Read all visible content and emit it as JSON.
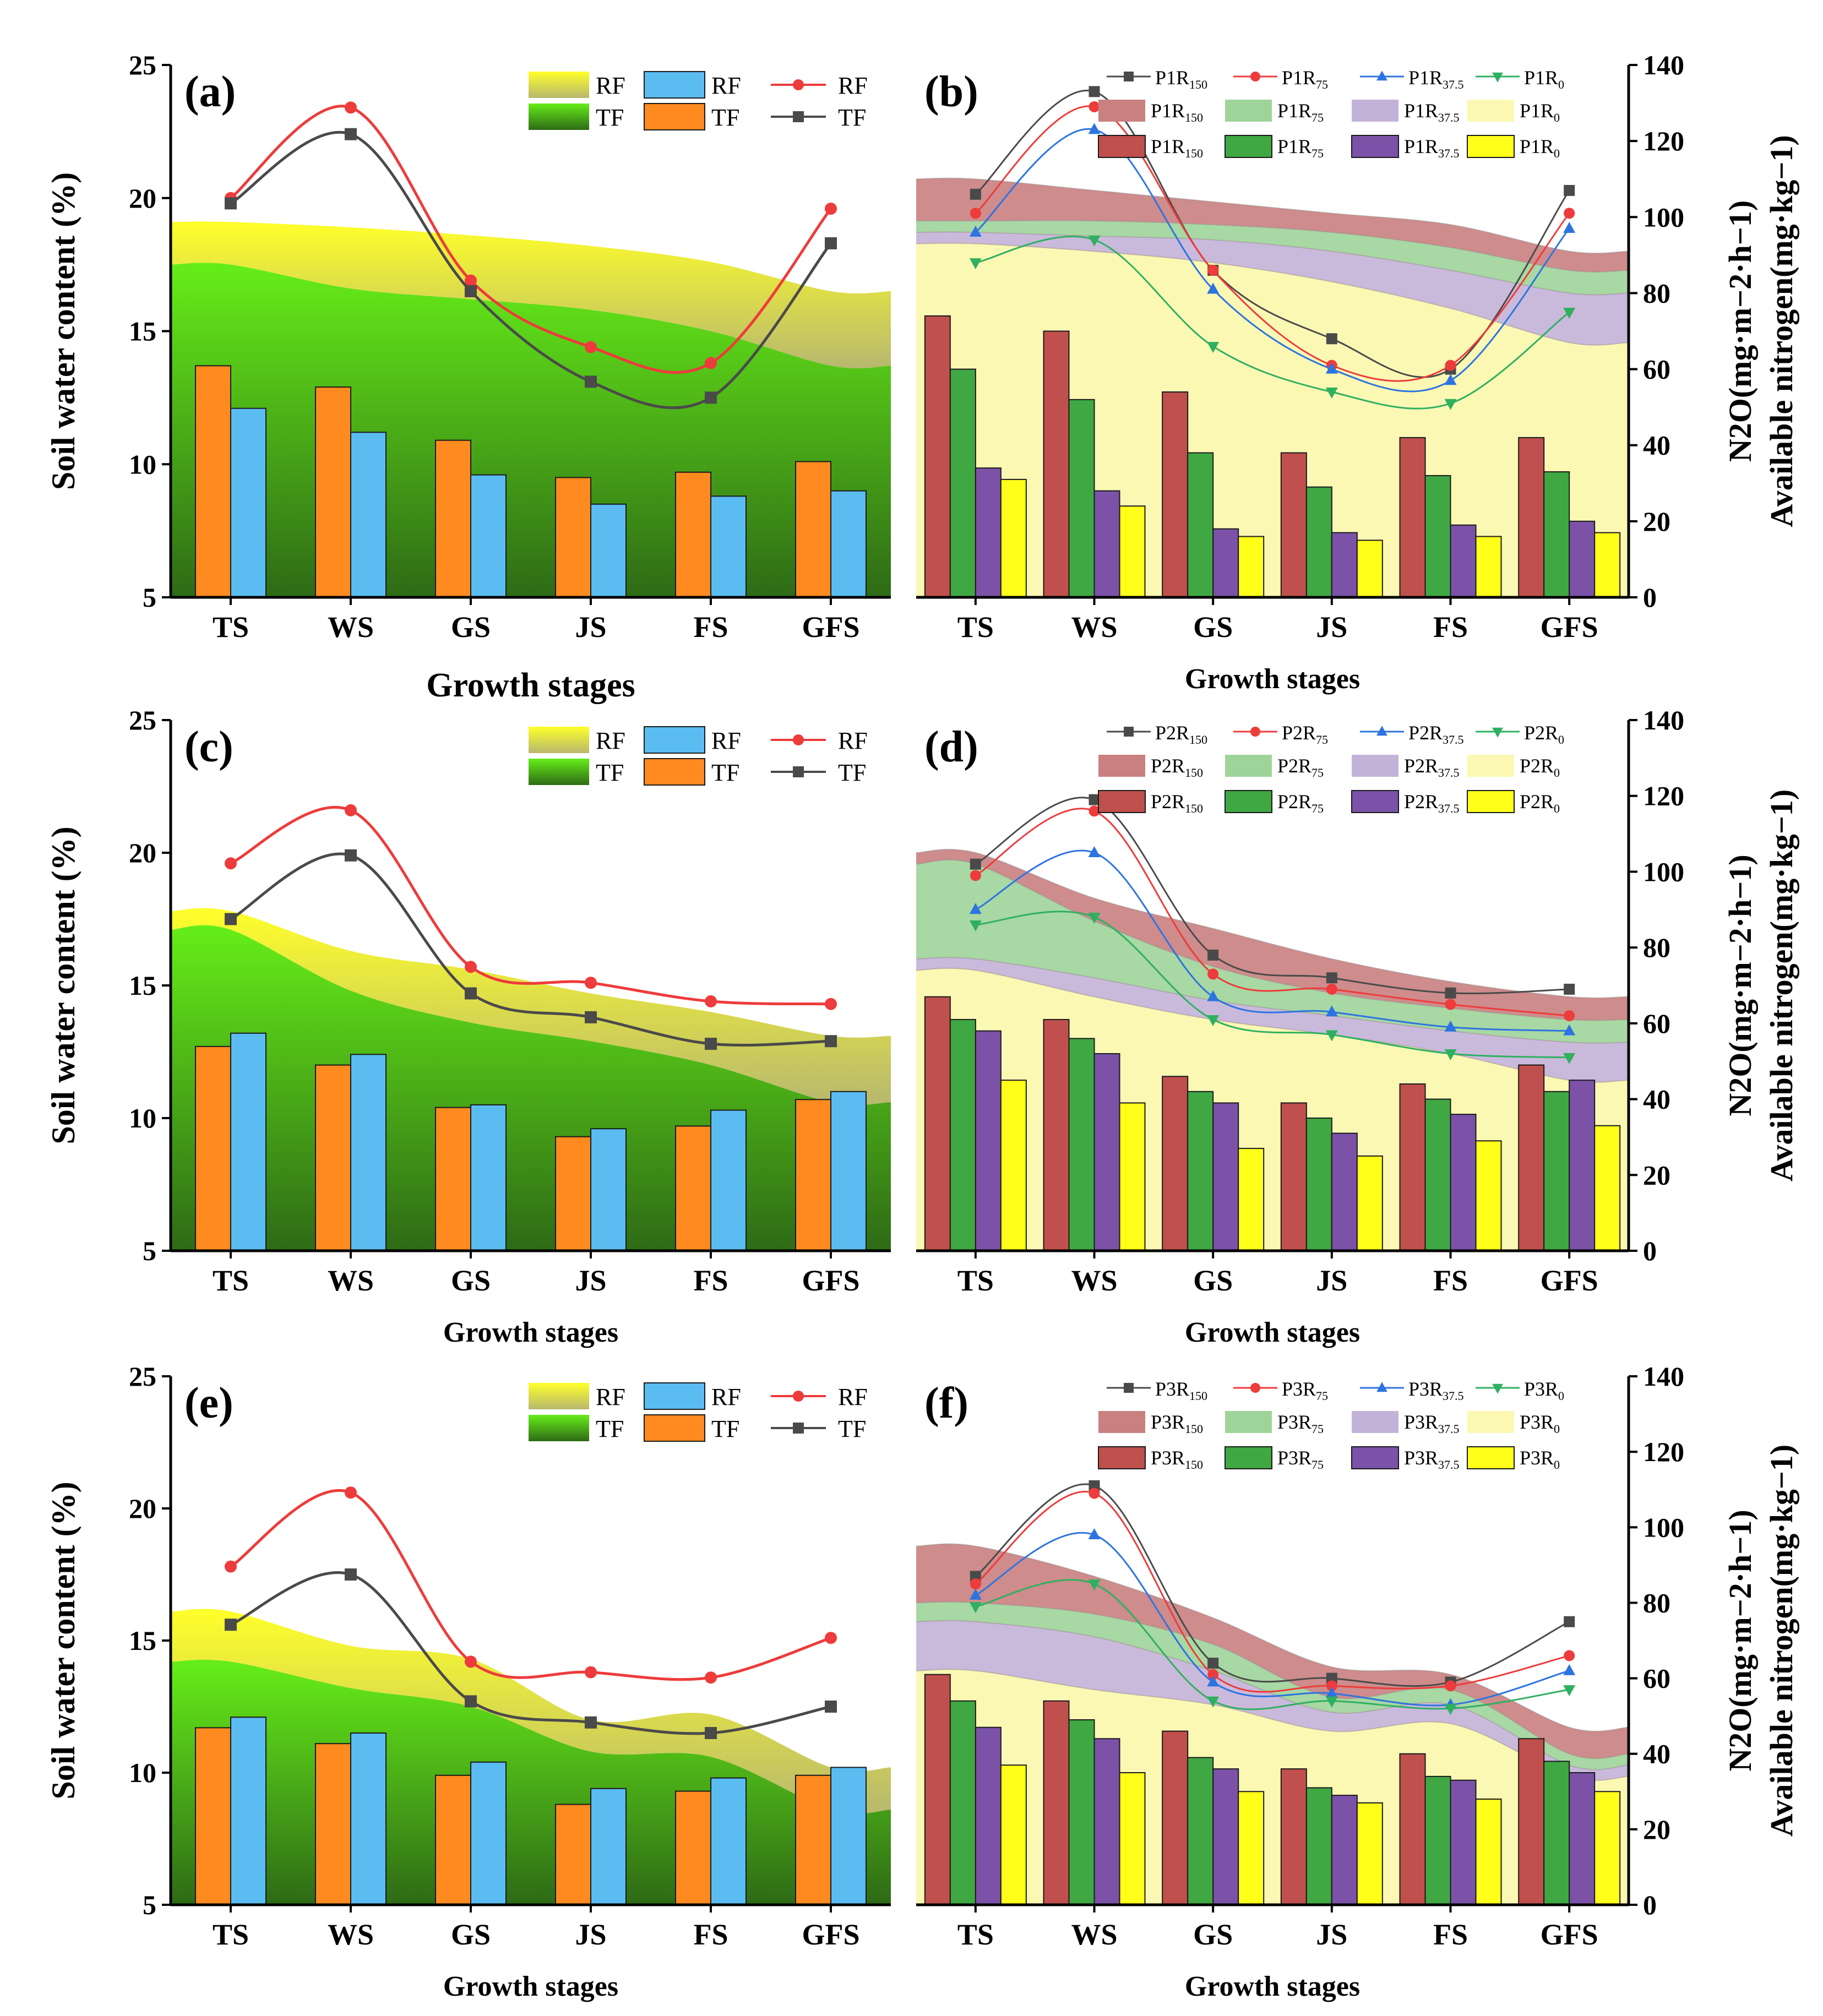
{
  "chart_data": [
    {
      "id": "a",
      "type": "bar",
      "panel_label": "(a)",
      "ylabel": "Soil water content (%)",
      "xlabel": "Growth stages",
      "ylim": [
        5,
        25
      ],
      "yticks": [
        5,
        10,
        15,
        20,
        25
      ],
      "categories": [
        "TS",
        "WS",
        "GS",
        "JS",
        "FS",
        "GFS"
      ],
      "areas": [
        {
          "name": "RF",
          "color": "#f2f24a",
          "values": [
            19.1,
            18.9,
            18.6,
            18.2,
            17.6,
            16.5
          ]
        },
        {
          "name": "TF",
          "color": "#3cb81e",
          "values": [
            17.5,
            16.6,
            16.2,
            15.8,
            15.0,
            13.7
          ]
        }
      ],
      "bars": [
        {
          "name": "TF",
          "color": "#ff8a1f",
          "values": [
            13.7,
            12.9,
            10.9,
            9.5,
            9.7,
            10.1
          ]
        },
        {
          "name": "RF",
          "color": "#5bbcf2",
          "values": [
            12.1,
            11.2,
            9.6,
            8.5,
            8.8,
            9.0
          ]
        }
      ],
      "lines": [
        {
          "name": "RF",
          "color": "#ee3b3b",
          "marker": "circle",
          "values": [
            20.0,
            23.4,
            16.9,
            14.4,
            13.8,
            19.6
          ]
        },
        {
          "name": "TF",
          "color": "#4a4a4a",
          "marker": "square",
          "values": [
            19.8,
            22.4,
            16.5,
            13.1,
            12.5,
            18.3
          ]
        }
      ],
      "legend": [
        {
          "label": "RF",
          "kind": "area-rf"
        },
        {
          "label": "TF",
          "kind": "area-tf"
        },
        {
          "label": "RF",
          "kind": "bar-rf"
        },
        {
          "label": "TF",
          "kind": "bar-tf"
        },
        {
          "label": "RF",
          "kind": "line-rf"
        },
        {
          "label": "TF",
          "kind": "line-tf"
        }
      ]
    },
    {
      "id": "b",
      "type": "bar",
      "panel_label": "(b)",
      "ylabel": "N2O(mg·m−2·h−1)  Available nitrogen(mg·kg−1)",
      "xlabel": "Growth stages",
      "ylim": [
        0,
        140
      ],
      "yticks": [
        0,
        20,
        40,
        60,
        80,
        100,
        120,
        140
      ],
      "categories": [
        "TS",
        "WS",
        "GS",
        "JS",
        "FS",
        "GFS"
      ],
      "areas": [
        {
          "name": "P1R150",
          "color": "#c98080",
          "values": [
            110,
            107,
            104,
            101,
            98,
            91
          ]
        },
        {
          "name": "P1R75",
          "color": "#9ed49a",
          "values": [
            99,
            99,
            98,
            96,
            92,
            86
          ]
        },
        {
          "name": "P1R37.5",
          "color": "#c3b2d8",
          "values": [
            96,
            95,
            94,
            91,
            86,
            80
          ]
        },
        {
          "name": "P1R0",
          "color": "#fbf8b4",
          "values": [
            93,
            91,
            88,
            83,
            76,
            67
          ]
        }
      ],
      "bars": [
        {
          "name": "P1R150",
          "color": "#c0504d",
          "values": [
            74,
            70,
            54,
            38,
            42,
            42
          ]
        },
        {
          "name": "P1R75",
          "color": "#3fa843",
          "values": [
            60,
            52,
            38,
            29,
            32,
            33
          ]
        },
        {
          "name": "P1R37.5",
          "color": "#7b52a8",
          "values": [
            34,
            28,
            18,
            17,
            19,
            20
          ]
        },
        {
          "name": "P1R0",
          "color": "#ffff1a",
          "values": [
            31,
            24,
            16,
            15,
            16,
            17
          ]
        }
      ],
      "lines": [
        {
          "name": "P1R150",
          "color": "#4a4a4a",
          "marker": "square",
          "values": [
            106,
            133,
            86,
            68,
            60,
            107
          ]
        },
        {
          "name": "P1R75",
          "color": "#ee3b3b",
          "marker": "circle",
          "values": [
            101,
            129,
            86,
            61,
            61,
            101
          ]
        },
        {
          "name": "P1R37.5",
          "color": "#2d74e0",
          "marker": "triangle",
          "values": [
            96,
            123,
            81,
            60,
            57,
            97
          ]
        },
        {
          "name": "P1R0",
          "color": "#2fb060",
          "marker": "triangle-down",
          "values": [
            88,
            94,
            66,
            54,
            51,
            75
          ]
        }
      ],
      "legend": [
        {
          "label": "P1R150",
          "kind": "line",
          "series": 0
        },
        {
          "label": "P1R75",
          "kind": "line",
          "series": 1
        },
        {
          "label": "P1R37.5",
          "kind": "line",
          "series": 2
        },
        {
          "label": "P1R0",
          "kind": "line",
          "series": 3
        },
        {
          "label": "P1R150",
          "kind": "area",
          "series": 0
        },
        {
          "label": "P1R75",
          "kind": "area",
          "series": 1
        },
        {
          "label": "P1R37.5",
          "kind": "area",
          "series": 2
        },
        {
          "label": "P1R0",
          "kind": "area",
          "series": 3
        },
        {
          "label": "P1R150",
          "kind": "bar",
          "series": 0
        },
        {
          "label": "P1R75",
          "kind": "bar",
          "series": 1
        },
        {
          "label": "P1R37.5",
          "kind": "bar",
          "series": 2
        },
        {
          "label": "P1R0",
          "kind": "bar",
          "series": 3
        }
      ]
    },
    {
      "id": "c",
      "type": "bar",
      "panel_label": "(c)",
      "ylabel": "Soil water content (%)",
      "xlabel": "Growth stages",
      "ylim": [
        5,
        25
      ],
      "yticks": [
        5,
        10,
        15,
        20,
        25
      ],
      "categories": [
        "TS",
        "WS",
        "GS",
        "JS",
        "FS",
        "GFS"
      ],
      "areas": [
        {
          "name": "RF",
          "color": "#f2f24a",
          "values": [
            17.8,
            16.3,
            15.6,
            14.7,
            14.0,
            13.1
          ]
        },
        {
          "name": "TF",
          "color": "#3cb81e",
          "values": [
            17.1,
            14.8,
            13.6,
            12.9,
            12.0,
            10.6
          ]
        }
      ],
      "bars": [
        {
          "name": "TF",
          "color": "#ff8a1f",
          "values": [
            12.7,
            12.0,
            10.4,
            9.3,
            9.7,
            10.7
          ]
        },
        {
          "name": "RF",
          "color": "#5bbcf2",
          "values": [
            13.2,
            12.4,
            10.5,
            9.6,
            10.3,
            11.0
          ]
        }
      ],
      "lines": [
        {
          "name": "RF",
          "color": "#ee3b3b",
          "marker": "circle",
          "values": [
            19.6,
            21.6,
            15.7,
            15.1,
            14.4,
            14.3
          ]
        },
        {
          "name": "TF",
          "color": "#4a4a4a",
          "marker": "square",
          "values": [
            17.5,
            19.9,
            14.7,
            13.8,
            12.8,
            12.9
          ]
        }
      ],
      "legend": [
        {
          "label": "RF",
          "kind": "area-rf"
        },
        {
          "label": "TF",
          "kind": "area-tf"
        },
        {
          "label": "RF",
          "kind": "bar-rf"
        },
        {
          "label": "TF",
          "kind": "bar-tf"
        },
        {
          "label": "RF",
          "kind": "line-rf"
        },
        {
          "label": "TF",
          "kind": "line-tf"
        }
      ]
    },
    {
      "id": "d",
      "type": "bar",
      "panel_label": "(d)",
      "ylabel": "N2O(mg·m−2·h−1)  Available nitrogen(mg·kg−1)",
      "xlabel": "Growth stages",
      "ylim": [
        0,
        140
      ],
      "yticks": [
        0,
        20,
        40,
        60,
        80,
        100,
        120,
        140
      ],
      "categories": [
        "TS",
        "WS",
        "GS",
        "JS",
        "FS",
        "GFS"
      ],
      "areas": [
        {
          "name": "P2R150",
          "color": "#c98080",
          "values": [
            105,
            93,
            85,
            77,
            71,
            67
          ]
        },
        {
          "name": "P2R75",
          "color": "#9ed49a",
          "values": [
            102,
            87,
            75,
            68,
            64,
            61
          ]
        },
        {
          "name": "P2R37.5",
          "color": "#c3b2d8",
          "values": [
            77,
            72,
            66,
            62,
            58,
            55
          ]
        },
        {
          "name": "P2R0",
          "color": "#fbf8b4",
          "values": [
            74,
            67,
            61,
            57,
            52,
            45
          ]
        }
      ],
      "bars": [
        {
          "name": "P2R150",
          "color": "#c0504d",
          "values": [
            67,
            61,
            46,
            39,
            44,
            49
          ]
        },
        {
          "name": "P2R75",
          "color": "#3fa843",
          "values": [
            61,
            56,
            42,
            35,
            40,
            42
          ]
        },
        {
          "name": "P2R37.5",
          "color": "#7b52a8",
          "values": [
            58,
            52,
            39,
            31,
            36,
            45
          ]
        },
        {
          "name": "P2R0",
          "color": "#ffff1a",
          "values": [
            45,
            39,
            27,
            25,
            29,
            33
          ]
        }
      ],
      "lines": [
        {
          "name": "P2R150",
          "color": "#4a4a4a",
          "marker": "square",
          "values": [
            102,
            119,
            78,
            72,
            68,
            69
          ]
        },
        {
          "name": "P2R75",
          "color": "#ee3b3b",
          "marker": "circle",
          "values": [
            99,
            116,
            73,
            69,
            65,
            62
          ]
        },
        {
          "name": "P2R37.5",
          "color": "#2d74e0",
          "marker": "triangle",
          "values": [
            90,
            105,
            67,
            63,
            59,
            58
          ]
        },
        {
          "name": "P2R0",
          "color": "#2fb060",
          "marker": "triangle-down",
          "values": [
            86,
            88,
            61,
            57,
            52,
            51
          ]
        }
      ],
      "legend": [
        {
          "label": "P2R150",
          "kind": "line",
          "series": 0
        },
        {
          "label": "P2R75",
          "kind": "line",
          "series": 1
        },
        {
          "label": "P2R37.5",
          "kind": "line",
          "series": 2
        },
        {
          "label": "P2R0",
          "kind": "line",
          "series": 3
        },
        {
          "label": "P2R150",
          "kind": "area",
          "series": 0
        },
        {
          "label": "P2R75",
          "kind": "area",
          "series": 1
        },
        {
          "label": "P2R37.5",
          "kind": "area",
          "series": 2
        },
        {
          "label": "P2R0",
          "kind": "area",
          "series": 3
        },
        {
          "label": "P2R150",
          "kind": "bar",
          "series": 0
        },
        {
          "label": "P2R75",
          "kind": "bar",
          "series": 1
        },
        {
          "label": "P2R37.5",
          "kind": "bar",
          "series": 2
        },
        {
          "label": "P2R0",
          "kind": "bar",
          "series": 3
        }
      ]
    },
    {
      "id": "e",
      "type": "bar",
      "panel_label": "(e)",
      "ylabel": "Soil water content (%)",
      "xlabel": "Growth stages",
      "ylim": [
        5,
        25
      ],
      "yticks": [
        5,
        10,
        15,
        20,
        25
      ],
      "categories": [
        "TS",
        "WS",
        "GS",
        "JS",
        "FS",
        "GFS"
      ],
      "areas": [
        {
          "name": "RF",
          "color": "#f2f24a",
          "values": [
            16.1,
            14.8,
            14.3,
            12.0,
            12.2,
            10.2
          ]
        },
        {
          "name": "TF",
          "color": "#3cb81e",
          "values": [
            14.2,
            13.2,
            12.5,
            10.8,
            10.6,
            8.6
          ]
        }
      ],
      "bars": [
        {
          "name": "TF",
          "color": "#ff8a1f",
          "values": [
            11.7,
            11.1,
            9.9,
            8.8,
            9.3,
            9.9
          ]
        },
        {
          "name": "RF",
          "color": "#5bbcf2",
          "values": [
            12.1,
            11.5,
            10.4,
            9.4,
            9.8,
            10.2
          ]
        }
      ],
      "lines": [
        {
          "name": "RF",
          "color": "#ee3b3b",
          "marker": "circle",
          "values": [
            17.8,
            20.6,
            14.2,
            13.8,
            13.6,
            15.1
          ]
        },
        {
          "name": "TF",
          "color": "#4a4a4a",
          "marker": "square",
          "values": [
            15.6,
            17.5,
            12.7,
            11.9,
            11.5,
            12.5
          ]
        }
      ],
      "legend": [
        {
          "label": "RF",
          "kind": "area-rf"
        },
        {
          "label": "TF",
          "kind": "area-tf"
        },
        {
          "label": "RF",
          "kind": "bar-rf"
        },
        {
          "label": "TF",
          "kind": "bar-tf"
        },
        {
          "label": "RF",
          "kind": "line-rf"
        },
        {
          "label": "TF",
          "kind": "line-tf"
        }
      ]
    },
    {
      "id": "f",
      "type": "bar",
      "panel_label": "(f)",
      "ylabel": "N2O(mg·m−2·h−1)  Available nitrogen(mg·kg−1)",
      "xlabel": "Growth stages",
      "ylim": [
        0,
        140
      ],
      "yticks": [
        0,
        20,
        40,
        60,
        80,
        100,
        120,
        140
      ],
      "categories": [
        "TS",
        "WS",
        "GS",
        "JS",
        "FS",
        "GFS"
      ],
      "areas": [
        {
          "name": "P3R150",
          "color": "#c98080",
          "values": [
            95,
            87,
            76,
            63,
            61,
            47
          ]
        },
        {
          "name": "P3R75",
          "color": "#9ed49a",
          "values": [
            80,
            77,
            69,
            55,
            57,
            40
          ]
        },
        {
          "name": "P3R37.5",
          "color": "#c3b2d8",
          "values": [
            75,
            71,
            62,
            51,
            53,
            37
          ]
        },
        {
          "name": "P3R0",
          "color": "#fbf8b4",
          "values": [
            62,
            57,
            53,
            46,
            48,
            34
          ]
        }
      ],
      "bars": [
        {
          "name": "P3R150",
          "color": "#c0504d",
          "values": [
            61,
            54,
            46,
            36,
            40,
            44
          ]
        },
        {
          "name": "P3R75",
          "color": "#3fa843",
          "values": [
            54,
            49,
            39,
            31,
            34,
            38
          ]
        },
        {
          "name": "P3R37.5",
          "color": "#7b52a8",
          "values": [
            47,
            44,
            36,
            29,
            33,
            35
          ]
        },
        {
          "name": "P3R0",
          "color": "#ffff1a",
          "values": [
            37,
            35,
            30,
            27,
            28,
            30
          ]
        }
      ],
      "lines": [
        {
          "name": "P3R150",
          "color": "#4a4a4a",
          "marker": "square",
          "values": [
            87,
            111,
            64,
            60,
            59,
            75
          ]
        },
        {
          "name": "P3R75",
          "color": "#ee3b3b",
          "marker": "circle",
          "values": [
            85,
            109,
            61,
            58,
            58,
            66
          ]
        },
        {
          "name": "P3R37.5",
          "color": "#2d74e0",
          "marker": "triangle",
          "values": [
            82,
            98,
            59,
            56,
            53,
            62
          ]
        },
        {
          "name": "P3R0",
          "color": "#2fb060",
          "marker": "triangle-down",
          "values": [
            79,
            85,
            54,
            54,
            52,
            57
          ]
        }
      ],
      "legend": [
        {
          "label": "P3R150",
          "kind": "line",
          "series": 0
        },
        {
          "label": "P3R75",
          "kind": "line",
          "series": 1
        },
        {
          "label": "P3R37.5",
          "kind": "line",
          "series": 2
        },
        {
          "label": "P3R0",
          "kind": "line",
          "series": 3
        },
        {
          "label": "P3R150",
          "kind": "area",
          "series": 0
        },
        {
          "label": "P3R75",
          "kind": "area",
          "series": 1
        },
        {
          "label": "P3R37.5",
          "kind": "area",
          "series": 2
        },
        {
          "label": "P3R0",
          "kind": "area",
          "series": 3
        },
        {
          "label": "P3R150",
          "kind": "bar",
          "series": 0
        },
        {
          "label": "P3R75",
          "kind": "bar",
          "series": 1
        },
        {
          "label": "P3R37.5",
          "kind": "bar",
          "series": 2
        },
        {
          "label": "P3R0",
          "kind": "bar",
          "series": 3
        }
      ]
    }
  ]
}
